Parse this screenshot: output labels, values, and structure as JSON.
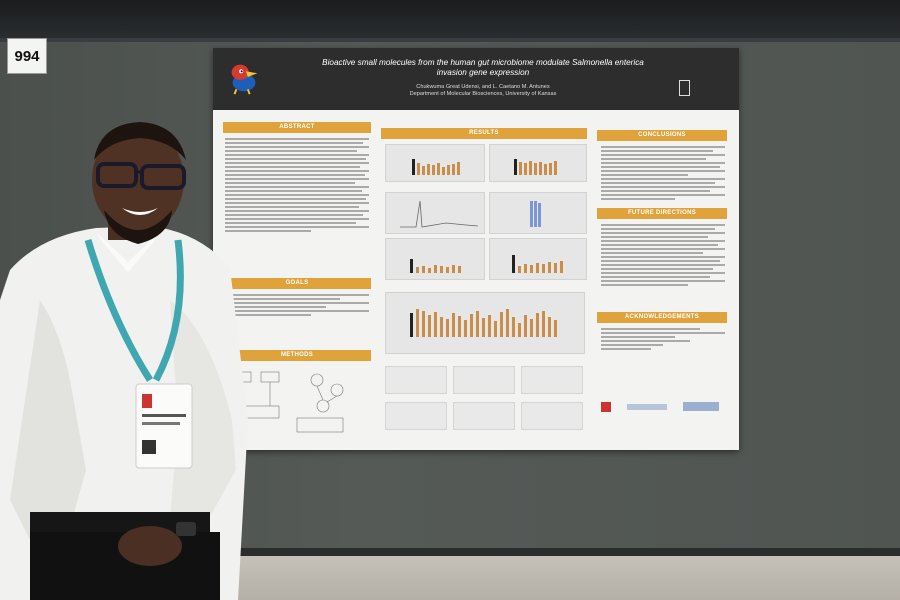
{
  "booth": {
    "number": "994"
  },
  "poster": {
    "title_line1": "Bioactive small molecules from the human gut microbiome modulate Salmonella enterica",
    "title_line2": "invasion gene expression",
    "authors": "Chukwuma Great Udensi, and L. Caetano M. Antunes",
    "affiliation": "Department of Molecular Biosciences, University of Kansas",
    "sections": {
      "abstract": "ABSTRACT",
      "goals": "GOALS",
      "methods": "METHODS",
      "results": "RESULTS",
      "conclusions": "CONCLUSIONS",
      "future_directions": "FUTURE DIRECTIONS",
      "acknowledgements": "ACKNOWLEDGEMENTS"
    },
    "colors": {
      "header_bg": "#2d2d2d",
      "section_accent": "#e0a23a",
      "bar_color": "#c98f4a",
      "poster_bg": "#f3f3f1"
    }
  },
  "scene": {
    "icons": [
      "jayhawk-mascot-icon",
      "department-logo-icon",
      "conference-lanyard-badge"
    ]
  }
}
